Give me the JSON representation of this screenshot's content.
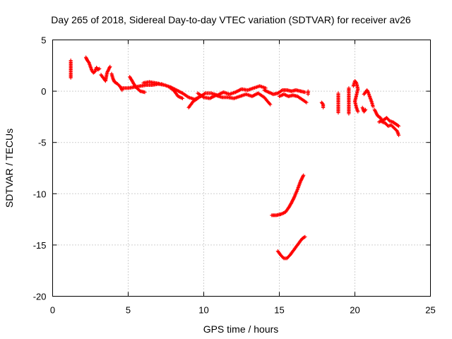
{
  "chart_data": {
    "type": "scatter",
    "title": "Day 265 of 2018, Sidereal Day-to-day VTEC variation (SDTVAR) for receiver av26",
    "xlabel": "GPS time / hours",
    "ylabel": "SDTVAR / TECUs",
    "xlim": [
      0,
      25
    ],
    "ylim": [
      -20,
      5
    ],
    "xticks": [
      0,
      5,
      10,
      15,
      20,
      25
    ],
    "yticks": [
      5,
      0,
      -5,
      -10,
      -15,
      -20
    ],
    "xtick_labels": [
      "0",
      "5",
      "10",
      "15",
      "20",
      "25"
    ],
    "ytick_labels": [
      "5",
      "0",
      "-5",
      "-10",
      "-15",
      "-20"
    ],
    "grid": true,
    "legend": "none",
    "marker": "+",
    "color": "#ff0000",
    "series": [
      {
        "name": "av26 SDTVAR",
        "segments": [
          [
            [
              1.2,
              3.0
            ],
            [
              1.2,
              2.6
            ],
            [
              1.2,
              2.2
            ],
            [
              1.2,
              1.5
            ],
            [
              1.2,
              1.3
            ]
          ],
          [
            [
              2.2,
              3.3
            ],
            [
              2.3,
              3.0
            ],
            [
              2.4,
              2.8
            ],
            [
              2.5,
              2.4
            ],
            [
              2.6,
              2.0
            ],
            [
              2.7,
              1.8
            ],
            [
              2.8,
              1.9
            ],
            [
              2.9,
              2.3
            ],
            [
              3.0,
              2.1
            ],
            [
              3.1,
              2.2
            ]
          ],
          [
            [
              3.2,
              1.6
            ],
            [
              3.4,
              1.2
            ],
            [
              3.5,
              1.0
            ],
            [
              3.6,
              1.8
            ],
            [
              3.8,
              2.4
            ]
          ],
          [
            [
              3.9,
              1.7
            ],
            [
              4.0,
              1.2
            ],
            [
              4.1,
              0.9
            ],
            [
              4.3,
              0.7
            ],
            [
              4.5,
              0.4
            ],
            [
              4.6,
              0.1
            ]
          ],
          [
            [
              4.6,
              0.3
            ],
            [
              5.0,
              0.3
            ],
            [
              5.4,
              0.4
            ],
            [
              5.8,
              0.5
            ],
            [
              6.2,
              0.6
            ],
            [
              6.6,
              0.6
            ],
            [
              7.0,
              0.7
            ],
            [
              7.4,
              0.6
            ],
            [
              7.8,
              0.4
            ],
            [
              8.2,
              0.1
            ],
            [
              8.6,
              -0.2
            ],
            [
              9.0,
              -0.6
            ],
            [
              9.4,
              -0.8
            ],
            [
              9.8,
              -0.5
            ]
          ],
          [
            [
              5.1,
              1.4
            ],
            [
              5.3,
              0.9
            ],
            [
              5.5,
              0.4
            ],
            [
              5.8,
              0.0
            ],
            [
              6.1,
              -0.1
            ]
          ],
          [
            [
              6.0,
              0.8
            ],
            [
              6.4,
              0.9
            ],
            [
              6.8,
              0.8
            ],
            [
              7.2,
              0.7
            ],
            [
              7.6,
              0.5
            ],
            [
              8.0,
              0.1
            ],
            [
              8.3,
              -0.5
            ],
            [
              8.6,
              -0.7
            ]
          ],
          [
            [
              9.0,
              -1.6
            ],
            [
              9.3,
              -1.0
            ],
            [
              9.7,
              -0.6
            ],
            [
              10.1,
              -0.2
            ],
            [
              10.5,
              -0.2
            ],
            [
              10.9,
              -0.4
            ],
            [
              11.3,
              -0.1
            ],
            [
              11.7,
              -0.3
            ],
            [
              12.1,
              -0.1
            ],
            [
              12.5,
              0.2
            ],
            [
              12.9,
              0.1
            ],
            [
              13.3,
              0.3
            ],
            [
              13.7,
              0.5
            ],
            [
              14.1,
              0.3
            ]
          ],
          [
            [
              9.6,
              -0.2
            ],
            [
              10.0,
              -0.6
            ],
            [
              10.4,
              -0.7
            ],
            [
              10.8,
              -0.4
            ],
            [
              11.2,
              -0.6
            ],
            [
              11.6,
              -0.6
            ],
            [
              12.0,
              -0.7
            ],
            [
              12.4,
              -0.5
            ],
            [
              12.8,
              -0.3
            ],
            [
              13.2,
              -0.5
            ],
            [
              13.6,
              -0.2
            ],
            [
              14.0,
              -0.6
            ],
            [
              14.4,
              -1.3
            ]
          ],
          [
            [
              14.0,
              0.1
            ],
            [
              14.3,
              -0.1
            ],
            [
              14.6,
              -0.3
            ],
            [
              14.9,
              -0.2
            ],
            [
              15.2,
              0.1
            ],
            [
              15.5,
              0.1
            ],
            [
              15.8,
              0.0
            ],
            [
              16.1,
              0.1
            ],
            [
              16.4,
              0.0
            ],
            [
              16.7,
              -0.1
            ]
          ],
          [
            [
              15.0,
              -0.5
            ],
            [
              15.3,
              -0.3
            ],
            [
              15.6,
              -0.5
            ],
            [
              15.9,
              -0.4
            ],
            [
              16.2,
              -0.5
            ],
            [
              16.5,
              -0.8
            ],
            [
              16.8,
              -1.1
            ]
          ],
          [
            [
              16.9,
              0.0
            ],
            [
              16.9,
              -0.3
            ]
          ],
          [
            [
              17.8,
              -1.1
            ],
            [
              17.9,
              -1.3
            ],
            [
              17.9,
              -1.6
            ]
          ],
          [
            [
              18.9,
              -0.2
            ],
            [
              18.9,
              -1.2
            ],
            [
              18.9,
              -2.1
            ]
          ],
          [
            [
              19.6,
              0.3
            ],
            [
              19.6,
              -0.3
            ],
            [
              19.6,
              -0.9
            ],
            [
              19.6,
              -1.6
            ],
            [
              19.6,
              -2.2
            ]
          ],
          [
            [
              19.9,
              0.5
            ],
            [
              20.0,
              1.0
            ],
            [
              20.1,
              0.8
            ],
            [
              20.2,
              0.2
            ],
            [
              20.1,
              -0.4
            ],
            [
              20.0,
              -1.0
            ],
            [
              20.1,
              -1.6
            ],
            [
              20.2,
              -2.0
            ]
          ],
          [
            [
              20.5,
              -1.6
            ],
            [
              20.6,
              -2.0
            ],
            [
              20.7,
              -1.8
            ]
          ],
          [
            [
              20.6,
              -0.3
            ],
            [
              20.8,
              0.1
            ],
            [
              20.9,
              -0.2
            ],
            [
              21.0,
              -0.6
            ],
            [
              21.1,
              -1.0
            ],
            [
              21.2,
              -1.5
            ]
          ],
          [
            [
              21.3,
              -1.8
            ],
            [
              21.5,
              -2.4
            ],
            [
              21.7,
              -2.6
            ],
            [
              21.8,
              -3.0
            ],
            [
              22.0,
              -3.1
            ],
            [
              22.2,
              -3.4
            ],
            [
              22.4,
              -3.3
            ],
            [
              22.6,
              -3.6
            ],
            [
              22.8,
              -3.9
            ],
            [
              22.9,
              -4.3
            ]
          ],
          [
            [
              21.6,
              -3.0
            ],
            [
              21.9,
              -2.8
            ],
            [
              22.1,
              -2.6
            ],
            [
              22.3,
              -2.9
            ],
            [
              22.5,
              -3.0
            ],
            [
              22.7,
              -3.2
            ],
            [
              22.9,
              -3.4
            ]
          ],
          [
            [
              14.5,
              -12.1
            ],
            [
              14.8,
              -12.1
            ],
            [
              15.1,
              -12.0
            ],
            [
              15.4,
              -11.8
            ],
            [
              15.6,
              -11.4
            ],
            [
              15.8,
              -10.9
            ],
            [
              16.0,
              -10.3
            ],
            [
              16.2,
              -9.6
            ],
            [
              16.4,
              -8.8
            ],
            [
              16.6,
              -8.2
            ]
          ],
          [
            [
              14.9,
              -15.6
            ],
            [
              15.1,
              -16.0
            ],
            [
              15.3,
              -16.3
            ],
            [
              15.5,
              -16.3
            ],
            [
              15.7,
              -16.0
            ],
            [
              15.9,
              -15.6
            ],
            [
              16.1,
              -15.2
            ],
            [
              16.3,
              -14.8
            ],
            [
              16.5,
              -14.4
            ],
            [
              16.7,
              -14.2
            ]
          ]
        ]
      }
    ]
  }
}
